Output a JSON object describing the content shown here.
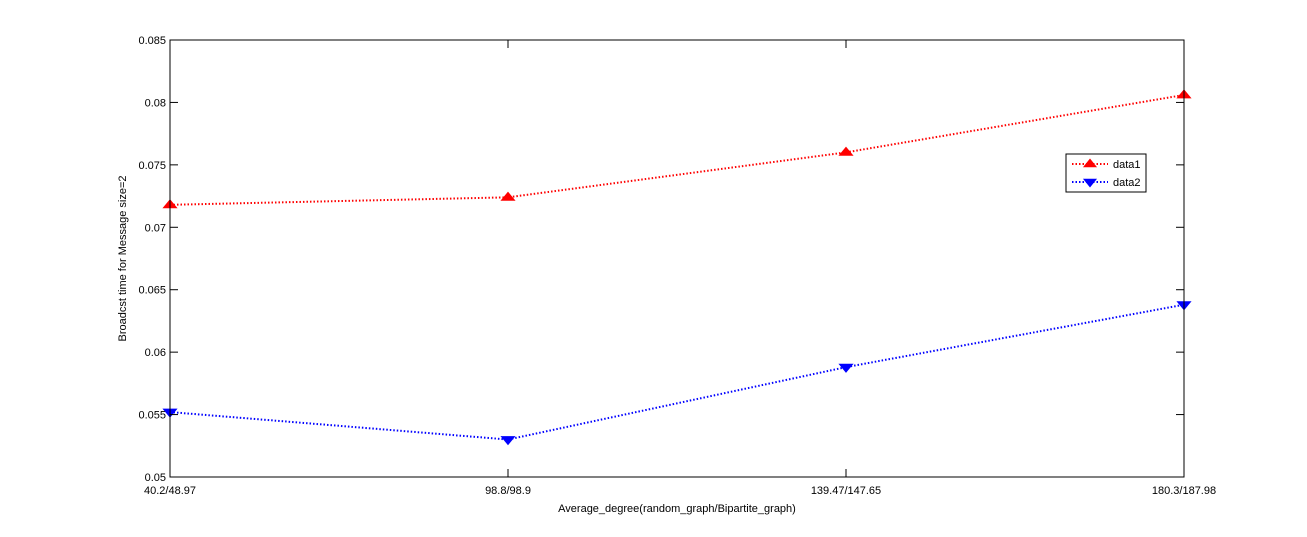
{
  "chart_data": {
    "type": "line",
    "title": "",
    "xlabel": "Average_degree(random_graph/Bipartite_graph)",
    "ylabel": "Broadcst time for Message size=2",
    "categories": [
      "40.2/48.97",
      "98.8/98.9",
      "139.47/147.65",
      "180.3/187.98"
    ],
    "ylim": [
      0.05,
      0.085
    ],
    "yticks": [
      0.05,
      0.055,
      0.06,
      0.065,
      0.07,
      0.075,
      0.08,
      0.085
    ],
    "ytick_labels": [
      "0.05",
      "0.055",
      "0.06",
      "0.065",
      "0.07",
      "0.075",
      "0.08",
      "0.085"
    ],
    "grid": false,
    "legend_position": "upper-right",
    "series": [
      {
        "name": "data1",
        "values": [
          0.0718,
          0.0724,
          0.076,
          0.0806
        ],
        "color": "#ff0000",
        "marker": "triangle-up",
        "line_style": "dotted"
      },
      {
        "name": "data2",
        "values": [
          0.0552,
          0.053,
          0.0588,
          0.0638
        ],
        "color": "#0000ff",
        "marker": "triangle-down",
        "line_style": "dotted"
      }
    ]
  }
}
